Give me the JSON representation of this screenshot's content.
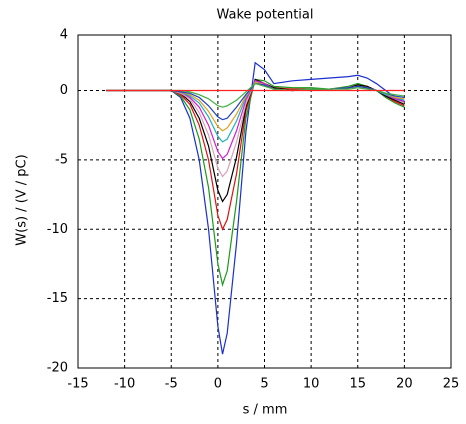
{
  "chart_data": {
    "type": "line",
    "title": "Wake potential",
    "x_label": "s / mm",
    "y_label": "W(s) / (V / pC)",
    "x": [
      -12,
      -5,
      -4,
      -3,
      -2,
      -1,
      0,
      0.5,
      1,
      2,
      3,
      4,
      5,
      6,
      8,
      10,
      12,
      14,
      15,
      16,
      17,
      18,
      19,
      20
    ],
    "series": [
      {
        "color": "#1a2fd0",
        "values": [
          0,
          0,
          -0.5,
          -2,
          -5,
          -10,
          -17,
          -19,
          -17.5,
          -11,
          -3,
          2,
          1.5,
          0.5,
          0.7,
          0.8,
          0.9,
          1,
          1.1,
          0.9,
          0.5,
          0,
          -0.5,
          -0.8
        ]
      },
      {
        "color": "#1a9a1a",
        "values": [
          0,
          0,
          -0.4,
          -1.4,
          -3.5,
          -7,
          -12.5,
          -14,
          -13,
          -8,
          -2,
          0.8,
          0.7,
          0.3,
          0.2,
          0.2,
          0.1,
          0.3,
          0.5,
          0.3,
          0,
          -0.5,
          -0.9,
          -1.2
        ]
      },
      {
        "color": "#e01010",
        "values": [
          0,
          0,
          -0.3,
          -1,
          -2.5,
          -5,
          -9,
          -10,
          -9.3,
          -6,
          -1.5,
          0.8,
          0.5,
          0.2,
          0.1,
          0.1,
          0.1,
          0.2,
          0.4,
          0.3,
          0,
          -0.4,
          -0.8,
          -1.1
        ]
      },
      {
        "color": "#000000",
        "values": [
          0,
          0,
          -0.2,
          -0.8,
          -2,
          -4,
          -7.2,
          -8,
          -7.5,
          -4.8,
          -1.2,
          0.8,
          0.5,
          0.2,
          0,
          0.1,
          0.1,
          0.2,
          0.4,
          0.3,
          0,
          -0.4,
          -0.7,
          -1
        ]
      },
      {
        "color": "#d8a0b8",
        "values": [
          0,
          0,
          -0.2,
          -0.6,
          -1.6,
          -3.2,
          -5.6,
          -6.2,
          -5.8,
          -3.7,
          -1,
          0.7,
          0.5,
          0.1,
          0,
          0.1,
          0.1,
          0.2,
          0.3,
          0.2,
          0,
          -0.3,
          -0.6,
          -0.9
        ]
      },
      {
        "color": "#d020d0",
        "values": [
          0,
          0,
          -0.1,
          -0.5,
          -1.2,
          -2.5,
          -4.4,
          -4.9,
          -4.6,
          -2.9,
          -0.7,
          0.7,
          0.5,
          0.1,
          0,
          0.1,
          0.1,
          0.2,
          0.3,
          0.2,
          0,
          -0.3,
          -0.6,
          -0.8
        ]
      },
      {
        "color": "#20b0c0",
        "values": [
          0,
          0,
          -0.1,
          -0.4,
          -0.9,
          -1.9,
          -3.3,
          -3.7,
          -3.5,
          -2.2,
          -0.5,
          0.6,
          0.4,
          0.1,
          0,
          0.1,
          0.1,
          0.2,
          0.3,
          0.2,
          0,
          -0.3,
          -0.5,
          -0.7
        ]
      },
      {
        "color": "#e0a020",
        "values": [
          0,
          0,
          -0.1,
          -0.3,
          -0.7,
          -1.5,
          -2.6,
          -2.9,
          -2.7,
          -1.7,
          -0.4,
          0.6,
          0.4,
          0.1,
          0,
          0.1,
          0.1,
          0.2,
          0.3,
          0.2,
          0,
          -0.2,
          -0.5,
          -0.6
        ]
      },
      {
        "color": "#2040c0",
        "values": [
          0,
          0,
          -0.1,
          -0.2,
          -0.5,
          -1.1,
          -1.9,
          -2.1,
          -2,
          -1.2,
          -0.3,
          0.5,
          0.4,
          0.1,
          0,
          0.1,
          0.1,
          0.2,
          0.3,
          0.2,
          0,
          -0.2,
          -0.4,
          -0.5
        ]
      },
      {
        "color": "#40b040",
        "values": [
          0,
          0,
          0,
          -0.1,
          -0.3,
          -0.6,
          -1.1,
          -1.2,
          -1.1,
          -0.7,
          -0.1,
          0.5,
          0.3,
          0.1,
          0,
          0.1,
          0.1,
          0.1,
          0.2,
          0.1,
          0,
          -0.2,
          -0.3,
          -0.4
        ]
      },
      {
        "color": "#ff2020",
        "values": [
          0,
          0,
          0,
          0,
          0,
          0,
          0,
          0,
          0,
          0,
          0,
          0,
          0,
          0,
          0,
          0,
          0,
          0,
          0,
          0,
          0,
          0,
          0,
          0
        ]
      }
    ],
    "xlim": [
      -15,
      25
    ],
    "xticks": [
      -15,
      -10,
      -5,
      0,
      5,
      10,
      15,
      20,
      25
    ],
    "ylim": [
      -20,
      4
    ],
    "yticks": [
      -20,
      -15,
      -10,
      -5,
      0,
      4
    ],
    "grid": true
  }
}
